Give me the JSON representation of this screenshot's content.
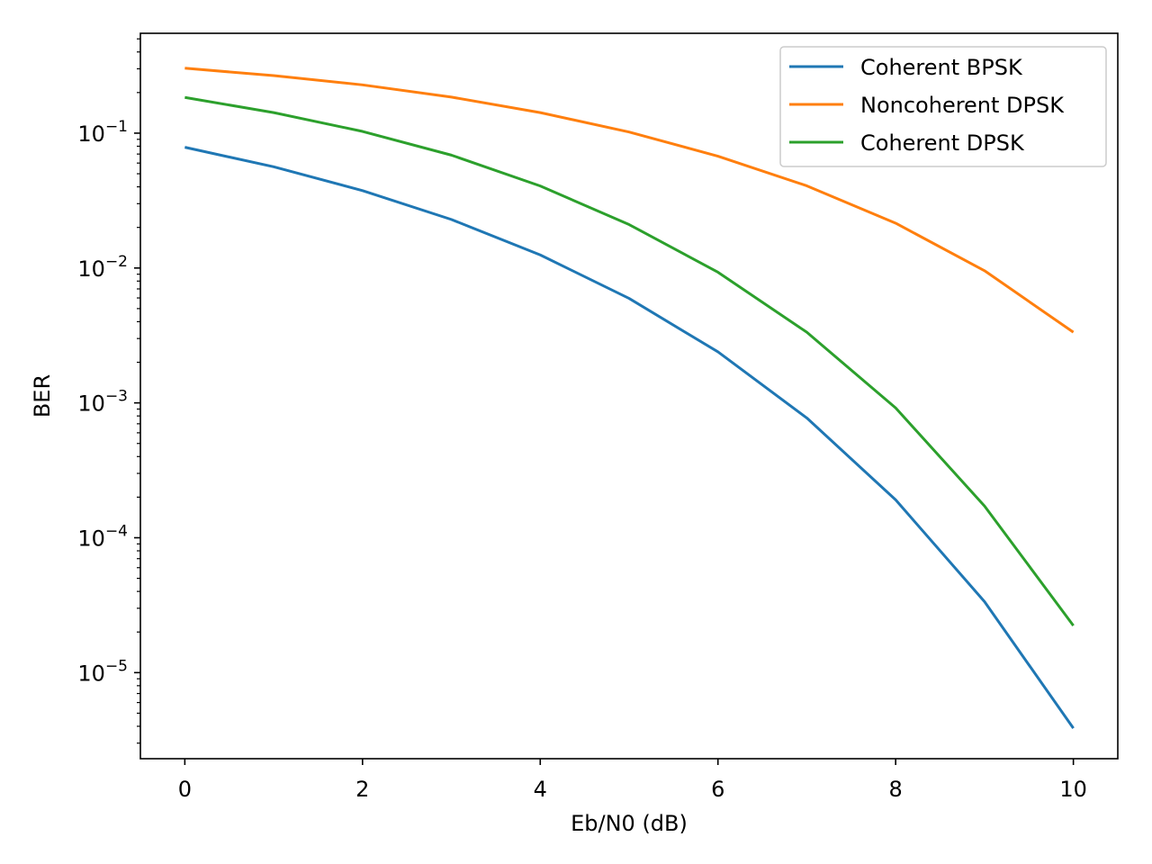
{
  "chart_data": {
    "type": "line",
    "title": "",
    "xlabel": "Eb/N0 (dB)",
    "ylabel": "BER",
    "yscale": "log",
    "xlim": [
      -0.5,
      10.5
    ],
    "ylim": [
      2.3e-06,
      0.55
    ],
    "grid": false,
    "legend_position": "top-right",
    "x_ticks": [
      0,
      2,
      4,
      6,
      8,
      10
    ],
    "x_tick_labels": [
      "0",
      "2",
      "4",
      "6",
      "8",
      "10"
    ],
    "y_ticks": [
      1e-05,
      0.0001,
      0.001,
      0.01,
      0.1
    ],
    "y_tick_labels": [
      {
        "base": "10",
        "exp": "−5"
      },
      {
        "base": "10",
        "exp": "−4"
      },
      {
        "base": "10",
        "exp": "−3"
      },
      {
        "base": "10",
        "exp": "−2"
      },
      {
        "base": "10",
        "exp": "−1"
      }
    ],
    "x": [
      0,
      1,
      2,
      3,
      4,
      5,
      6,
      7,
      8,
      9,
      10
    ],
    "series": [
      {
        "name": "Coherent BPSK",
        "color": "#1f77b4",
        "values": [
          0.0786,
          0.0563,
          0.0375,
          0.0229,
          0.0125,
          0.00595,
          0.00239,
          0.000773,
          0.000191,
          3.36e-05,
          3.87e-06
        ]
      },
      {
        "name": "Noncoherent DPSK",
        "color": "#ff7f0e",
        "values": [
          0.303,
          0.267,
          0.228,
          0.185,
          0.142,
          0.102,
          0.0675,
          0.0407,
          0.0215,
          0.00955,
          0.00334
        ]
      },
      {
        "name": "Coherent DPSK",
        "color": "#2ca02c",
        "values": [
          0.184,
          0.142,
          0.103,
          0.0687,
          0.0406,
          0.021,
          0.00931,
          0.00334,
          0.000917,
          0.000172,
          2.23e-05
        ]
      }
    ]
  }
}
